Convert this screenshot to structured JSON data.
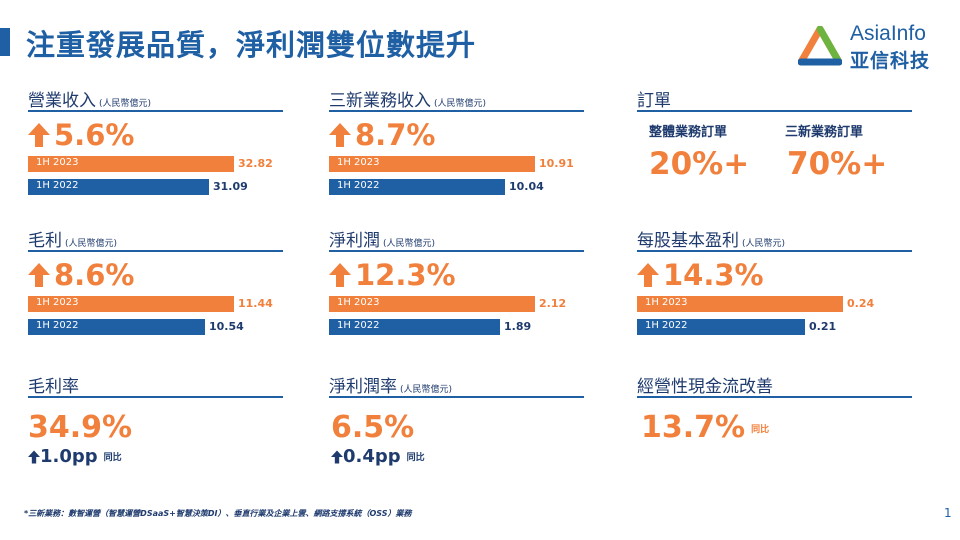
{
  "title": "注重發展品質，淨利潤雙位數提升",
  "logo": {
    "en": "AsiaInfo",
    "cn": "亚信科技"
  },
  "sections": {
    "revenue": {
      "title": "營業收入",
      "unit": "(人民幣億元)",
      "growth": "5.6%",
      "bars": [
        {
          "label": "1H 2023",
          "value": "32.82",
          "amount": 32.82
        },
        {
          "label": "1H 2022",
          "value": "31.09",
          "amount": 31.09
        }
      ]
    },
    "new_business": {
      "title": "三新業務收入",
      "unit": "(人民幣億元)",
      "growth": "8.7%",
      "bars": [
        {
          "label": "1H 2023",
          "value": "10.91",
          "amount": 10.91
        },
        {
          "label": "1H 2022",
          "value": "10.04",
          "amount": 10.04
        }
      ]
    },
    "orders": {
      "title": "訂單",
      "items": [
        {
          "label": "整體業務訂單",
          "value": "20%+"
        },
        {
          "label": "三新業務訂單",
          "value": "70%+"
        }
      ]
    },
    "gross_profit": {
      "title": "毛利",
      "unit": "(人民幣億元)",
      "growth": "8.6%",
      "bars": [
        {
          "label": "1H 2023",
          "value": "11.44",
          "amount": 11.44
        },
        {
          "label": "1H 2022",
          "value": "10.54",
          "amount": 10.54
        }
      ]
    },
    "net_profit": {
      "title": "淨利潤",
      "unit": "(人民幣億元)",
      "growth": "12.3%",
      "bars": [
        {
          "label": "1H 2023",
          "value": "2.12",
          "amount": 2.12
        },
        {
          "label": "1H 2022",
          "value": "1.89",
          "amount": 1.89
        }
      ]
    },
    "eps": {
      "title": "每股基本盈利",
      "unit": "(人民幣元)",
      "growth": "14.3%",
      "bars": [
        {
          "label": "1H 2023",
          "value": "0.24",
          "amount": 0.24
        },
        {
          "label": "1H 2022",
          "value": "0.21",
          "amount": 0.21
        }
      ]
    },
    "gross_margin": {
      "title": "毛利率",
      "value": "34.9%",
      "change": "1.0pp",
      "change_unit": "同比"
    },
    "net_margin": {
      "title": "淨利潤率",
      "unit": "(人民幣億元)",
      "value": "6.5%",
      "change": "0.4pp",
      "change_unit": "同比"
    },
    "cash_flow": {
      "title": "經營性現金流改善",
      "value": "13.7%",
      "change_unit": "同比"
    }
  },
  "footnote": "*三新業務：數智運營（智慧運營DSaaS+智慧決策DI）、垂直行業及企業上雲、網路支撐系統（OSS）業務",
  "page_number": "1",
  "colors": {
    "accent_orange": "#f0803c",
    "primary_blue": "#1f5fa3",
    "dark_navy": "#1f3b6e"
  }
}
